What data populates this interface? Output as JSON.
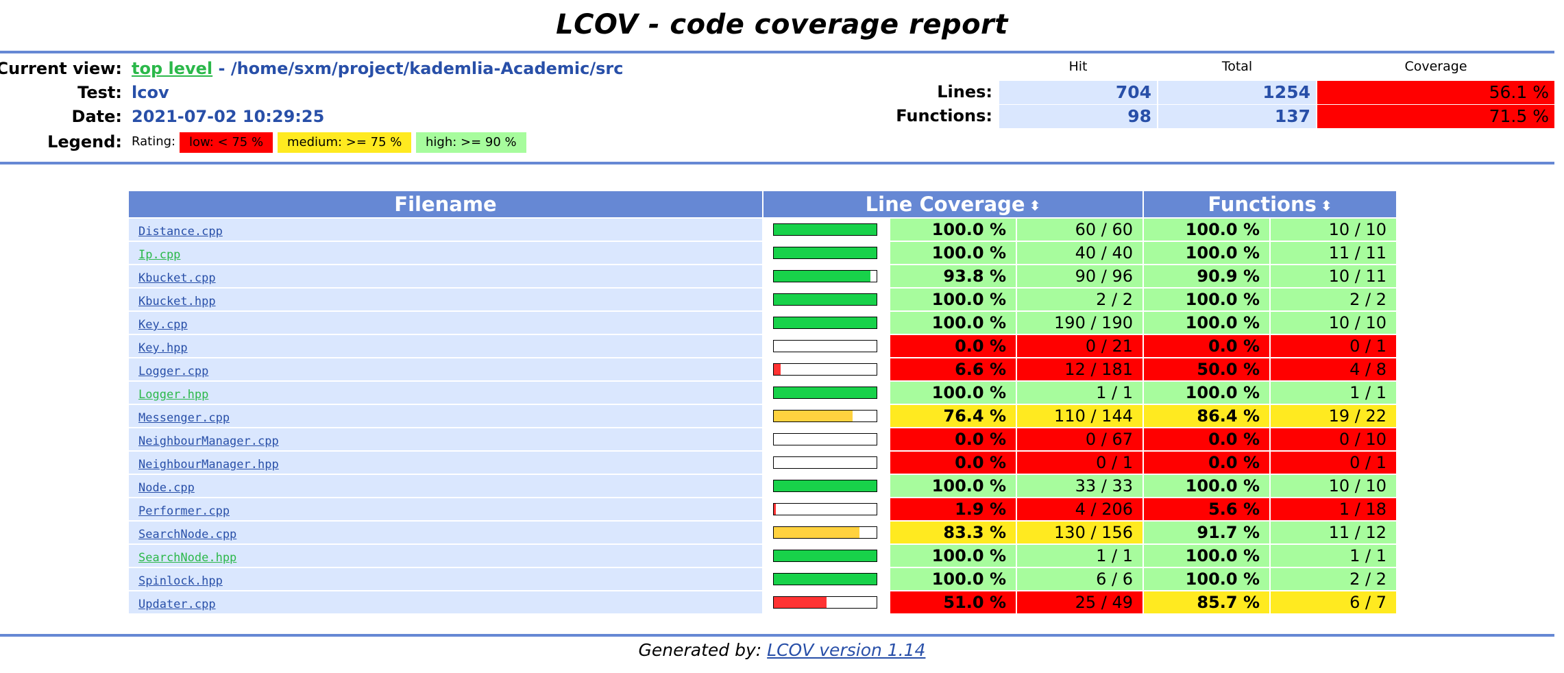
{
  "report": {
    "title": "LCOV - code coverage report",
    "current_view_label": "Current view:",
    "top_level_link": "top level",
    "path": "- /home/sxm/project/kademlia-Academic/src",
    "test_label": "Test:",
    "test_value": "lcov",
    "date_label": "Date:",
    "date_value": "2021-07-02 10:29:25",
    "legend_label": "Legend:",
    "rating_label": "Rating:",
    "legend_low": "low: < 75 %",
    "legend_medium": "medium: >= 75 %",
    "legend_high": "high: >= 90 %"
  },
  "summary": {
    "hit_header": "Hit",
    "total_header": "Total",
    "coverage_header": "Coverage",
    "lines_label": "Lines:",
    "lines_hit": "704",
    "lines_total": "1254",
    "lines_coverage": "56.1 %",
    "functions_label": "Functions:",
    "functions_hit": "98",
    "functions_total": "137",
    "functions_coverage": "71.5 %"
  },
  "table": {
    "col_filename": "Filename",
    "col_line_coverage": "Line Coverage",
    "col_functions": "Functions",
    "sort_icon": "⬍"
  },
  "files": [
    {
      "name": "Distance.cpp",
      "visited": false,
      "line_pct": "100.0 %",
      "line_ratio": 1.0,
      "lines": "60 / 60",
      "line_rating": "high",
      "func_pct": "100.0 %",
      "funcs": "10 / 10",
      "func_rating": "high"
    },
    {
      "name": "Ip.cpp",
      "visited": true,
      "line_pct": "100.0 %",
      "line_ratio": 1.0,
      "lines": "40 / 40",
      "line_rating": "high",
      "func_pct": "100.0 %",
      "funcs": "11 / 11",
      "func_rating": "high"
    },
    {
      "name": "Kbucket.cpp",
      "visited": false,
      "line_pct": "93.8 %",
      "line_ratio": 0.938,
      "lines": "90 / 96",
      "line_rating": "high",
      "func_pct": "90.9 %",
      "funcs": "10 / 11",
      "func_rating": "high"
    },
    {
      "name": "Kbucket.hpp",
      "visited": false,
      "line_pct": "100.0 %",
      "line_ratio": 1.0,
      "lines": "2 / 2",
      "line_rating": "high",
      "func_pct": "100.0 %",
      "funcs": "2 / 2",
      "func_rating": "high"
    },
    {
      "name": "Key.cpp",
      "visited": false,
      "line_pct": "100.0 %",
      "line_ratio": 1.0,
      "lines": "190 / 190",
      "line_rating": "high",
      "func_pct": "100.0 %",
      "funcs": "10 / 10",
      "func_rating": "high"
    },
    {
      "name": "Key.hpp",
      "visited": false,
      "line_pct": "0.0 %",
      "line_ratio": 0.0,
      "lines": "0 / 21",
      "line_rating": "low",
      "func_pct": "0.0 %",
      "funcs": "0 / 1",
      "func_rating": "low"
    },
    {
      "name": "Logger.cpp",
      "visited": false,
      "line_pct": "6.6 %",
      "line_ratio": 0.066,
      "lines": "12 / 181",
      "line_rating": "low",
      "func_pct": "50.0 %",
      "funcs": "4 / 8",
      "func_rating": "low"
    },
    {
      "name": "Logger.hpp",
      "visited": true,
      "line_pct": "100.0 %",
      "line_ratio": 1.0,
      "lines": "1 / 1",
      "line_rating": "high",
      "func_pct": "100.0 %",
      "funcs": "1 / 1",
      "func_rating": "high"
    },
    {
      "name": "Messenger.cpp",
      "visited": false,
      "line_pct": "76.4 %",
      "line_ratio": 0.764,
      "lines": "110 / 144",
      "line_rating": "medium",
      "func_pct": "86.4 %",
      "funcs": "19 / 22",
      "func_rating": "medium"
    },
    {
      "name": "NeighbourManager.cpp",
      "visited": false,
      "line_pct": "0.0 %",
      "line_ratio": 0.0,
      "lines": "0 / 67",
      "line_rating": "low",
      "func_pct": "0.0 %",
      "funcs": "0 / 10",
      "func_rating": "low"
    },
    {
      "name": "NeighbourManager.hpp",
      "visited": false,
      "line_pct": "0.0 %",
      "line_ratio": 0.0,
      "lines": "0 / 1",
      "line_rating": "low",
      "func_pct": "0.0 %",
      "funcs": "0 / 1",
      "func_rating": "low"
    },
    {
      "name": "Node.cpp",
      "visited": false,
      "line_pct": "100.0 %",
      "line_ratio": 1.0,
      "lines": "33 / 33",
      "line_rating": "high",
      "func_pct": "100.0 %",
      "funcs": "10 / 10",
      "func_rating": "high"
    },
    {
      "name": "Performer.cpp",
      "visited": false,
      "line_pct": "1.9 %",
      "line_ratio": 0.019,
      "lines": "4 / 206",
      "line_rating": "low",
      "func_pct": "5.6 %",
      "funcs": "1 / 18",
      "func_rating": "low"
    },
    {
      "name": "SearchNode.cpp",
      "visited": false,
      "line_pct": "83.3 %",
      "line_ratio": 0.833,
      "lines": "130 / 156",
      "line_rating": "medium",
      "func_pct": "91.7 %",
      "funcs": "11 / 12",
      "func_rating": "high"
    },
    {
      "name": "SearchNode.hpp",
      "visited": true,
      "line_pct": "100.0 %",
      "line_ratio": 1.0,
      "lines": "1 / 1",
      "line_rating": "high",
      "func_pct": "100.0 %",
      "funcs": "1 / 1",
      "func_rating": "high"
    },
    {
      "name": "Spinlock.hpp",
      "visited": false,
      "line_pct": "100.0 %",
      "line_ratio": 1.0,
      "lines": "6 / 6",
      "line_rating": "high",
      "func_pct": "100.0 %",
      "funcs": "2 / 2",
      "func_rating": "high"
    },
    {
      "name": "Updater.cpp",
      "visited": false,
      "line_pct": "51.0 %",
      "line_ratio": 0.51,
      "lines": "25 / 49",
      "line_rating": "low",
      "func_pct": "85.7 %",
      "funcs": "6 / 7",
      "func_rating": "medium"
    }
  ],
  "colors": {
    "low": "#ff0000",
    "medium": "#ffea20",
    "high": "#a7fc9d",
    "bar_low": "#ff3333",
    "bar_medium": "#ffd23f",
    "bar_high": "#18d24a",
    "header_blue": "#6688d4",
    "row_blue": "#dae7fe"
  },
  "footer": {
    "prefix": "Generated by:",
    "link": "LCOV version 1.14"
  }
}
